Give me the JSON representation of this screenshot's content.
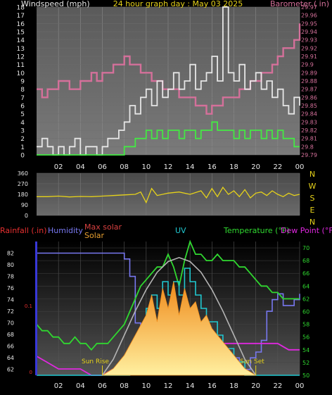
{
  "chart_data": [
    {
      "type": "line",
      "panel": "wind-baro",
      "title": "24 hour graph day : May 03 2025",
      "left_axis_label": "Windspeed (mph)",
      "right_axis_label": "Barometer ( in)",
      "x_ticks": [
        "02",
        "04",
        "06",
        "08",
        "10",
        "12",
        "14",
        "16",
        "18",
        "20",
        "22",
        "00"
      ],
      "left_ylim": [
        0,
        18
      ],
      "left_ticks": [
        0,
        1,
        2,
        3,
        4,
        5,
        6,
        7,
        8,
        9,
        10,
        11,
        12,
        13,
        14,
        15,
        16,
        17,
        18
      ],
      "right_ylim": [
        29.79,
        29.97
      ],
      "right_ticks": [
        "29.79",
        "29.8",
        "29.81",
        "29.82",
        "29.83",
        "29.84",
        "29.85",
        "29.86",
        "29.87",
        "29.88",
        "29.89",
        "29.9",
        "29.91",
        "29.92",
        "29.93",
        "29.94",
        "29.95",
        "29.96",
        "29.97"
      ],
      "series": [
        {
          "role": "barometer",
          "color": "#d4709a",
          "x": [
            0,
            0.5,
            1,
            1.5,
            2,
            2.5,
            3,
            3.5,
            4,
            4.5,
            5,
            5.5,
            6,
            6.5,
            7,
            7.5,
            8,
            8.5,
            9,
            9.5,
            10,
            10.5,
            11,
            11.5,
            12,
            12.5,
            13,
            13.5,
            14,
            14.5,
            15,
            15.5,
            16,
            16.5,
            17,
            17.5,
            18,
            18.5,
            19,
            19.5,
            20,
            20.5,
            21,
            21.5,
            22,
            22.5,
            23,
            23.5,
            24
          ],
          "y": [
            29.87,
            29.86,
            29.87,
            29.87,
            29.88,
            29.88,
            29.87,
            29.87,
            29.88,
            29.88,
            29.89,
            29.88,
            29.89,
            29.89,
            29.9,
            29.9,
            29.91,
            29.9,
            29.9,
            29.89,
            29.89,
            29.88,
            29.88,
            29.87,
            29.87,
            29.87,
            29.86,
            29.86,
            29.86,
            29.85,
            29.85,
            29.84,
            29.85,
            29.85,
            29.86,
            29.86,
            29.86,
            29.87,
            29.87,
            29.88,
            29.88,
            29.89,
            29.89,
            29.9,
            29.91,
            29.92,
            29.92,
            29.93,
            29.95
          ]
        },
        {
          "role": "gust",
          "color": "#e6e6e6",
          "x": [
            0,
            0.5,
            1,
            1.5,
            2,
            2.5,
            3,
            3.5,
            4,
            4.5,
            5,
            5.5,
            6,
            6.5,
            7,
            7.5,
            8,
            8.5,
            9,
            9.5,
            10,
            10.5,
            11,
            11.5,
            12,
            12.5,
            13,
            13.5,
            14,
            14.5,
            15,
            15.5,
            16,
            16.5,
            17,
            17.5,
            18,
            18.5,
            19,
            19.5,
            20,
            20.5,
            21,
            21.5,
            22,
            22.5,
            23,
            23.5,
            24
          ],
          "y": [
            1,
            2,
            1,
            0,
            1,
            0,
            1,
            2,
            0,
            1,
            1,
            0,
            1,
            2,
            2,
            3,
            4,
            6,
            5,
            7,
            8,
            6,
            9,
            7,
            8,
            10,
            8,
            9,
            11,
            8,
            9,
            10,
            12,
            9,
            18,
            10,
            9,
            11,
            8,
            9,
            10,
            8,
            9,
            7,
            8,
            6,
            5,
            7,
            6
          ]
        },
        {
          "role": "windspeed",
          "color": "#44e844",
          "x": [
            0,
            0.5,
            1,
            1.5,
            2,
            2.5,
            3,
            3.5,
            4,
            4.5,
            5,
            5.5,
            6,
            6.5,
            7,
            7.5,
            8,
            8.5,
            9,
            9.5,
            10,
            10.5,
            11,
            11.5,
            12,
            12.5,
            13,
            13.5,
            14,
            14.5,
            15,
            15.5,
            16,
            16.5,
            17,
            17.5,
            18,
            18.5,
            19,
            19.5,
            20,
            20.5,
            21,
            21.5,
            22,
            22.5,
            23,
            23.5,
            24
          ],
          "y": [
            0,
            0,
            0,
            0,
            0,
            0,
            0,
            0,
            0,
            0,
            0,
            0,
            0,
            0,
            0,
            0,
            1,
            1,
            2,
            2,
            3,
            2,
            3,
            2,
            3,
            3,
            2,
            3,
            3,
            2,
            3,
            3,
            4,
            3,
            3,
            3,
            2,
            3,
            2,
            3,
            3,
            2,
            3,
            2,
            3,
            2,
            2,
            1,
            1
          ]
        }
      ]
    },
    {
      "type": "line",
      "panel": "wind-direction",
      "y_ticks": [
        "360",
        "270",
        "180",
        "90",
        "0"
      ],
      "ylim": [
        0,
        360
      ],
      "compass_labels": [
        "N",
        "W",
        "S",
        "E",
        "N"
      ],
      "series": [
        {
          "role": "direction",
          "color": "#e6d21a",
          "x": [
            0,
            1,
            2,
            3,
            4,
            5,
            6,
            7,
            8,
            9,
            9.5,
            10,
            10.5,
            11,
            12,
            13,
            14,
            15,
            15.5,
            16,
            16.5,
            17,
            17.5,
            18,
            18.5,
            19,
            19.5,
            20,
            20.5,
            21,
            21.5,
            22,
            22.5,
            23,
            23.5,
            24
          ],
          "y": [
            160,
            160,
            165,
            158,
            162,
            160,
            165,
            170,
            175,
            180,
            200,
            110,
            230,
            170,
            190,
            200,
            180,
            210,
            150,
            230,
            160,
            240,
            180,
            210,
            160,
            220,
            150,
            190,
            200,
            170,
            210,
            180,
            160,
            190,
            170,
            180
          ]
        }
      ]
    },
    {
      "type": "line",
      "panel": "rain-hum-solar-uv-temp",
      "labels": {
        "rainfall": "Rainfall (.in)",
        "humidity": "Humidity",
        "max_solar": "Max solar",
        "solar": "Solar",
        "uv": "UV",
        "temperature": "Temperature (°F)",
        "dew_point": "Dew Point (°F)",
        "sun_rise": "Sun Rise",
        "sun_set": "Sun Set"
      },
      "x_ticks": [
        "02",
        "04",
        "06",
        "08",
        "10",
        "12",
        "14",
        "16",
        "18",
        "20",
        "22",
        "00"
      ],
      "rain_ticks": [
        "0.1",
        "0"
      ],
      "humidity_ticks": [
        62,
        64,
        66,
        68,
        70,
        72,
        74,
        76,
        78,
        80,
        82
      ],
      "temperature_ticks": [
        50,
        52,
        54,
        56,
        58,
        60,
        62,
        64,
        66,
        68,
        70
      ],
      "humidity_ylim": [
        61,
        84
      ],
      "temperature_ylim": [
        50,
        71
      ],
      "sun_rise_hour": 6,
      "sun_set_hour": 20,
      "series": [
        {
          "role": "humidity",
          "color": "#7878f0",
          "x": [
            0,
            1,
            2,
            3,
            4,
            5,
            6,
            7,
            7.5,
            8,
            8.5,
            9,
            9.5,
            10,
            10.5,
            11,
            11.5,
            12,
            12.5,
            13,
            13.5,
            14,
            14.5,
            15,
            15.5,
            16,
            16.5,
            17,
            17.5,
            18,
            18.5,
            19,
            19.5,
            20,
            20.5,
            21,
            21.5,
            22,
            22.5,
            23,
            23.5,
            24
          ],
          "y": [
            82,
            82,
            82,
            82,
            82,
            82,
            82,
            82,
            82,
            81,
            78,
            70,
            66,
            64,
            66,
            63,
            65,
            63,
            66,
            63,
            62,
            66,
            64,
            64,
            65,
            64,
            63,
            65,
            63,
            64,
            62,
            62,
            64,
            65,
            67,
            72,
            74,
            75,
            73,
            73,
            74,
            75
          ]
        },
        {
          "role": "temperature",
          "color": "#30d830",
          "x": [
            0,
            0.5,
            1,
            1.5,
            2,
            2.5,
            3,
            3.5,
            4,
            4.5,
            5,
            5.5,
            6,
            6.5,
            7,
            7.5,
            8,
            8.5,
            9,
            9.5,
            10,
            10.5,
            11,
            11.5,
            12,
            12.5,
            13,
            13.5,
            14,
            14.5,
            15,
            15.5,
            16,
            16.5,
            17,
            17.5,
            18,
            18.5,
            19,
            19.5,
            20,
            20.5,
            21,
            21.5,
            22,
            22.5,
            23,
            23.5,
            24
          ],
          "y": [
            58,
            57,
            57,
            56,
            56,
            55,
            55,
            56,
            55,
            55,
            54,
            55,
            55,
            55,
            56,
            57,
            58,
            60,
            62,
            64,
            65,
            66,
            67,
            67,
            69,
            67,
            64,
            68,
            71,
            69,
            69,
            68,
            68,
            69,
            68,
            68,
            68,
            67,
            67,
            66,
            65,
            64,
            64,
            63,
            63,
            62,
            62,
            62,
            62
          ]
        },
        {
          "role": "dew_point",
          "color": "#e028e0",
          "x": [
            0,
            1,
            2,
            3,
            4,
            5,
            6,
            7,
            8,
            9,
            10,
            11,
            12,
            13,
            14,
            15,
            16,
            17,
            18,
            19,
            20,
            21,
            22,
            23,
            24
          ],
          "y": [
            53,
            52,
            51,
            51,
            51,
            50,
            50,
            51,
            52,
            53,
            54,
            54,
            55,
            55,
            56,
            55,
            55,
            55,
            55,
            55,
            55,
            55,
            55,
            54,
            54
          ]
        },
        {
          "role": "uv",
          "color": "#20c8d0",
          "x": [
            0,
            8,
            8.5,
            9,
            9.5,
            10,
            10.5,
            11,
            11.5,
            12,
            12.5,
            13,
            13.5,
            14,
            14.5,
            15,
            15.5,
            16,
            16.5,
            17,
            17.5,
            18,
            18.5,
            19,
            24
          ],
          "y": [
            0,
            0,
            1,
            2,
            3,
            5,
            6,
            5,
            7,
            6,
            7,
            6,
            8,
            7,
            6,
            5,
            4,
            4,
            3,
            2,
            2,
            1,
            1,
            0,
            0
          ]
        },
        {
          "role": "solar",
          "color": "#f09020",
          "x": [
            6,
            7,
            8,
            9,
            10,
            10.5,
            11,
            11.5,
            12,
            12.5,
            13,
            13.5,
            14,
            14.5,
            15,
            15.5,
            16,
            17,
            18,
            19,
            20
          ],
          "y": [
            0,
            50,
            150,
            300,
            450,
            600,
            400,
            650,
            500,
            700,
            450,
            650,
            500,
            550,
            400,
            450,
            350,
            250,
            150,
            50,
            0
          ]
        },
        {
          "role": "max_solar",
          "color": "#b4b4b4",
          "x": [
            6,
            7,
            8,
            9,
            10,
            11,
            12,
            13,
            14,
            15,
            16,
            17,
            18,
            19,
            20
          ],
          "y": [
            0,
            120,
            300,
            480,
            640,
            770,
            850,
            880,
            850,
            770,
            640,
            480,
            300,
            120,
            0
          ]
        }
      ],
      "solar_ylim": [
        0,
        1000
      ],
      "uv_ylim": [
        0,
        10
      ]
    }
  ]
}
